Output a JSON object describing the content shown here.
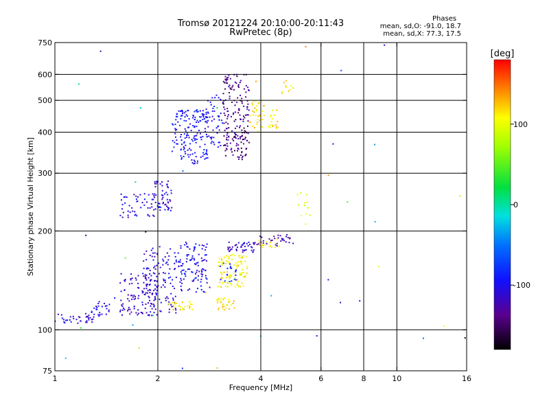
{
  "header": {
    "title": "Tromsø 20121224 20:10:00-20:11:43",
    "subtitle": "RwPretec (8p)",
    "phases_heading": "Phases",
    "phases_o": "mean, sd,O: -91.0, 18.7",
    "phases_x": "mean, sd,X:  77.3, 17.5"
  },
  "colorbar": {
    "label": "[deg]",
    "range": [
      -180,
      180
    ],
    "ticks": [
      100,
      0,
      -100
    ],
    "tick_labels": [
      "100",
      "0",
      "-100"
    ]
  },
  "chart_data": {
    "type": "scatter",
    "title": "Tromsø 20121224 20:10:00-20:11:43",
    "subtitle": "RwPretec (8p)",
    "xlabel": "Frequency [MHz]",
    "ylabel": "Stationary phase Virtual Height [km]",
    "x_scale": "log",
    "y_scale": "log",
    "xlim": [
      1,
      16
    ],
    "ylim": [
      75,
      750
    ],
    "x_ticks": [
      1,
      2,
      4,
      6,
      8,
      10,
      16
    ],
    "x_tick_labels": [
      "1",
      "2",
      "4",
      "6",
      "8",
      "10",
      "16"
    ],
    "y_ticks": [
      75,
      100,
      200,
      300,
      400,
      500,
      600,
      750
    ],
    "y_tick_labels": [
      "75",
      "100",
      "200",
      "300",
      "400",
      "500",
      "600",
      "750"
    ],
    "x_gridlines": [
      2,
      4,
      6,
      8,
      10
    ],
    "y_gridlines": [
      100,
      200,
      300,
      400,
      500,
      600
    ],
    "color_scale": "phase (deg), rainbow from black (-180) to red (180)",
    "clusters": [
      {
        "f": [
          1.0,
          1.3
        ],
        "h": [
          104,
          112
        ],
        "phase": -110,
        "n": 35
      },
      {
        "f": [
          1.28,
          1.48
        ],
        "h": [
          110,
          122
        ],
        "phase": -110,
        "n": 25
      },
      {
        "f": [
          1.55,
          2.0
        ],
        "h": [
          110,
          150
        ],
        "phase": -115,
        "n": 110
      },
      {
        "f": [
          1.8,
          2.3
        ],
        "h": [
          112,
          180
        ],
        "phase": -110,
        "n": 120
      },
      {
        "f": [
          2.3,
          2.8
        ],
        "h": [
          130,
          185
        ],
        "phase": -100,
        "n": 110
      },
      {
        "f": [
          2.15,
          2.55
        ],
        "h": [
          115,
          122
        ],
        "phase": 115,
        "n": 30
      },
      {
        "f": [
          2.95,
          3.35
        ],
        "h": [
          115,
          125
        ],
        "phase": 115,
        "n": 30
      },
      {
        "f": [
          3.0,
          3.65
        ],
        "h": [
          135,
          170
        ],
        "phase": 110,
        "n": 100
      },
      {
        "f": [
          3.0,
          3.4
        ],
        "h": [
          140,
          160
        ],
        "phase": -80,
        "n": 20
      },
      {
        "f": [
          3.2,
          3.9
        ],
        "h": [
          172,
          185
        ],
        "phase": -115,
        "n": 45
      },
      {
        "f": [
          3.9,
          5.0
        ],
        "h": [
          180,
          195
        ],
        "phase": -120,
        "n": 35
      },
      {
        "f": [
          3.9,
          4.6
        ],
        "h": [
          178,
          190
        ],
        "phase": 115,
        "n": 15
      },
      {
        "f": [
          1.55,
          2.1
        ],
        "h": [
          220,
          260
        ],
        "phase": -110,
        "n": 60
      },
      {
        "f": [
          1.95,
          2.2
        ],
        "h": [
          230,
          285
        ],
        "phase": -110,
        "n": 45
      },
      {
        "f": [
          2.2,
          2.8
        ],
        "h": [
          320,
          470
        ],
        "phase": -95,
        "n": 170
      },
      {
        "f": [
          2.75,
          3.1
        ],
        "h": [
          360,
          520
        ],
        "phase": -100,
        "n": 50
      },
      {
        "f": [
          3.1,
          3.7
        ],
        "h": [
          330,
          600
        ],
        "phase": -140,
        "n": 190
      },
      {
        "f": [
          3.7,
          4.1
        ],
        "h": [
          400,
          500
        ],
        "phase": 115,
        "n": 35
      },
      {
        "f": [
          4.2,
          4.5
        ],
        "h": [
          410,
          470
        ],
        "phase": 110,
        "n": 18
      },
      {
        "f": [
          4.6,
          5.0
        ],
        "h": [
          520,
          610
        ],
        "phase": 110,
        "n": 10
      },
      {
        "f": [
          5.1,
          5.6
        ],
        "h": [
          200,
          270
        ],
        "phase": 100,
        "n": 12
      },
      {
        "f": [
          1.0,
          16.0
        ],
        "h": [
          75,
          750
        ],
        "phase": 60,
        "n": 40
      }
    ]
  }
}
